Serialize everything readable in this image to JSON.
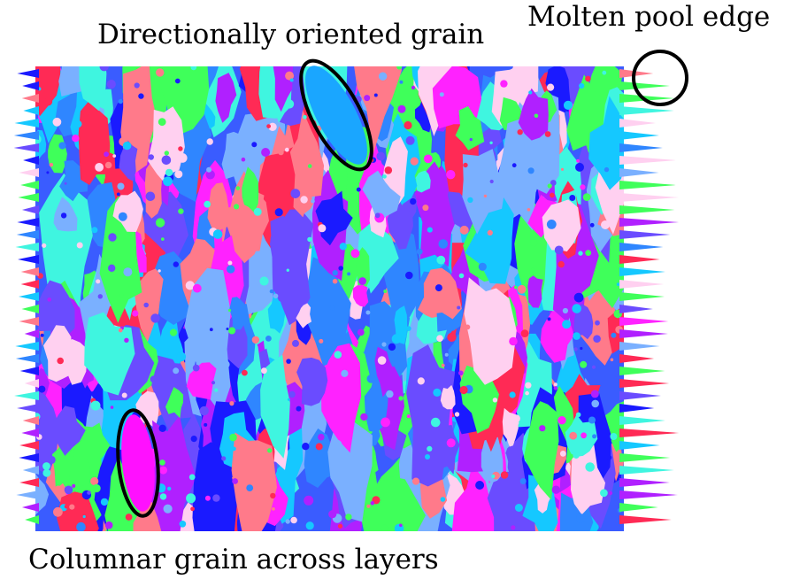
{
  "annotations": {
    "directional_grain": "Directionally oriented grain",
    "molten_pool_edge": "Molten pool edge",
    "columnar_grain": "Columnar grain across layers"
  },
  "colors": {
    "palette": [
      "#ff2a55",
      "#2f86ff",
      "#1a1aff",
      "#3ff5e0",
      "#b020ff",
      "#ff22ff",
      "#3fff5a",
      "#ff7a8a",
      "#7ab0ff",
      "#ffd0f0",
      "#15c8ff",
      "#6a4cff"
    ],
    "highlight_directional": "#1aa6ff",
    "highlight_columnar": "#ff10ff",
    "outline": "#000000"
  }
}
